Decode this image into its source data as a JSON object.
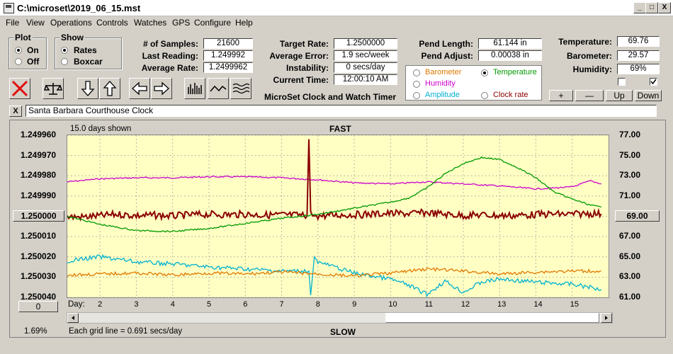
{
  "window": {
    "title": "C:\\microset\\2019_06_15.mst"
  },
  "title_buttons": {
    "minimize": "_",
    "maximize": "□",
    "close": "X"
  },
  "menu": [
    "File",
    "View",
    "Operations",
    "Controls",
    "Watches",
    "GPS",
    "Configure",
    "Help"
  ],
  "plot_group": {
    "title": "Plot",
    "options": [
      "On",
      "Off"
    ],
    "selected": "On"
  },
  "show_group": {
    "title": "Show",
    "options": [
      "Rates",
      "Boxcar"
    ],
    "selected": "Rates"
  },
  "stats": {
    "samples_label": "# of Samples:",
    "samples": "21600",
    "last_label": "Last Reading:",
    "last": "1.249992",
    "avg_rate_label": "Average Rate:",
    "avg_rate": "1.2499962"
  },
  "rates": {
    "target_label": "Target Rate:",
    "target": "1.2500000",
    "avg_error_label": "Average Error:",
    "avg_error": "1.9 sec/week",
    "instability_label": "Instability:",
    "instability": "0 secs/day",
    "time_label": "Current Time:",
    "time": "12:00:10 AM"
  },
  "app_caption": "MicroSet Clock and Watch Timer",
  "pend": {
    "length_label": "Pend Length:",
    "length": "61.144 in",
    "adjust_label": "Pend Adjust:",
    "adjust": "0.00038 in"
  },
  "env": {
    "temp_label": "Temperature:",
    "temp": "69.76",
    "baro_label": "Barometer:",
    "baro": "29.57",
    "hum_label": "Humidity:",
    "hum": "69%"
  },
  "series_select": {
    "options": [
      {
        "label": "Barometer",
        "color": "#e07800",
        "selected": false
      },
      {
        "label": "Temperature",
        "color": "#009900",
        "selected": true
      },
      {
        "label": "Humidity",
        "color": "#cc00cc",
        "selected": false
      },
      {
        "label": "Clock rate",
        "color": "#8b0000",
        "selected": false
      },
      {
        "label": "Amplitude",
        "color": "#00b0d0",
        "selected": false
      }
    ]
  },
  "scale_buttons": [
    "+",
    "—",
    "Up",
    "Down"
  ],
  "clock_name": "Santa Barbara Courthouse Clock",
  "close_x": "X",
  "chart_header": {
    "days_shown": "15.0 days shown",
    "top": "FAST",
    "bottom": "SLOW",
    "grid_note": "Each grid line = 0.691 secs/day",
    "percent": "1.69%"
  },
  "left_center_btn": "1.250000",
  "right_center_btn": "69.00",
  "bottom_left_btn": "0",
  "chart_data": {
    "type": "line",
    "xlabel": "Day:",
    "x_ticks": [
      2,
      3,
      4,
      5,
      6,
      7,
      8,
      9,
      10,
      11,
      12,
      13,
      14,
      15
    ],
    "xlim": [
      1.1,
      16.0
    ],
    "y_left": {
      "ticks": [
        "1.249960",
        "1.249970",
        "1.249980",
        "1.249990",
        "1.250000",
        "1.250010",
        "1.250020",
        "1.250030",
        "1.250040"
      ],
      "lim": [
        1.25004,
        1.24996
      ]
    },
    "y_right": {
      "ticks": [
        "77.00",
        "75.00",
        "73.00",
        "71.00",
        "69.00",
        "67.00",
        "65.00",
        "63.00",
        "61.00"
      ],
      "lim": [
        61,
        77
      ]
    },
    "series": [
      {
        "color": "#cc00cc",
        "axis": "right",
        "x": [
          1.1,
          2,
          3,
          4,
          5,
          6,
          7,
          8,
          9,
          10,
          11,
          12,
          13,
          14,
          15,
          15.5,
          15.8
        ],
        "y": [
          72.4,
          72.7,
          72.8,
          72.8,
          72.9,
          72.9,
          72.8,
          72.6,
          72.3,
          72.2,
          72.4,
          72.2,
          72.0,
          71.7,
          71.9,
          72.5,
          72.2
        ]
      },
      {
        "color": "#8b0000",
        "axis": "left",
        "x": [
          1.1,
          1.5,
          2,
          2.5,
          3,
          3.5,
          4,
          4.5,
          5,
          5.5,
          6,
          6.5,
          7,
          7.5,
          7.7,
          7.75,
          7.8,
          7.85,
          8,
          8.5,
          9,
          9.5,
          10,
          10.5,
          11,
          11.5,
          12,
          12.5,
          13,
          13.5,
          14,
          14.5,
          15,
          15.5,
          15.8
        ],
        "y": [
          1.2500002,
          1.2500004,
          1.2499998,
          1.249999,
          1.2499997,
          1.2499995,
          1.2499999,
          1.2499993,
          1.249999,
          1.2499992,
          1.249999,
          1.2499994,
          1.2499993,
          1.2499995,
          1.2499998,
          1.249962,
          1.2499975,
          1.2499998,
          1.2499998,
          1.2499994,
          1.2499992,
          1.2499989,
          1.2499986,
          1.2499987,
          1.2499982,
          1.249999,
          1.2499996,
          1.2499993,
          1.2499997,
          1.2499996,
          1.2499991,
          1.2499989,
          1.249999,
          1.2499986,
          1.2499988
        ]
      },
      {
        "color": "#009900",
        "axis": "right",
        "x": [
          1.1,
          2,
          3,
          4,
          5,
          6,
          7,
          8,
          9,
          10,
          10.5,
          11,
          11.5,
          12,
          12.5,
          13,
          13.5,
          14,
          14.5,
          15,
          15.5,
          15.8
        ],
        "y": [
          69.0,
          68.2,
          67.6,
          67.5,
          67.8,
          68.3,
          68.8,
          69.2,
          69.8,
          70.4,
          70.8,
          71.8,
          73.2,
          74.2,
          74.8,
          74.6,
          73.8,
          72.8,
          71.4,
          70.7,
          70.1,
          69.9
        ]
      },
      {
        "color": "#00b0d0",
        "axis": "right",
        "x": [
          1.1,
          2,
          3,
          4,
          5,
          6,
          7,
          7.75,
          7.8,
          7.9,
          8,
          9,
          10,
          10.5,
          11,
          11.5,
          12,
          12.5,
          13,
          14,
          15,
          15.8
        ],
        "y": [
          64.6,
          65.0,
          64.5,
          64.3,
          64.0,
          63.8,
          63.6,
          63.6,
          61.2,
          65.0,
          64.5,
          63.4,
          62.8,
          62.2,
          61.3,
          62.6,
          61.5,
          62.5,
          62.8,
          62.5,
          62.3,
          61.8
        ]
      },
      {
        "color": "#e07800",
        "axis": "right",
        "x": [
          1.1,
          2,
          3,
          4,
          5,
          6,
          7,
          8,
          9,
          10,
          11,
          12,
          13,
          14,
          15,
          15.8
        ],
        "y": [
          63.2,
          63.3,
          63.4,
          63.2,
          63.4,
          63.3,
          63.5,
          63.3,
          63.1,
          63.4,
          63.8,
          63.6,
          63.3,
          63.5,
          63.6,
          63.6
        ]
      }
    ]
  }
}
